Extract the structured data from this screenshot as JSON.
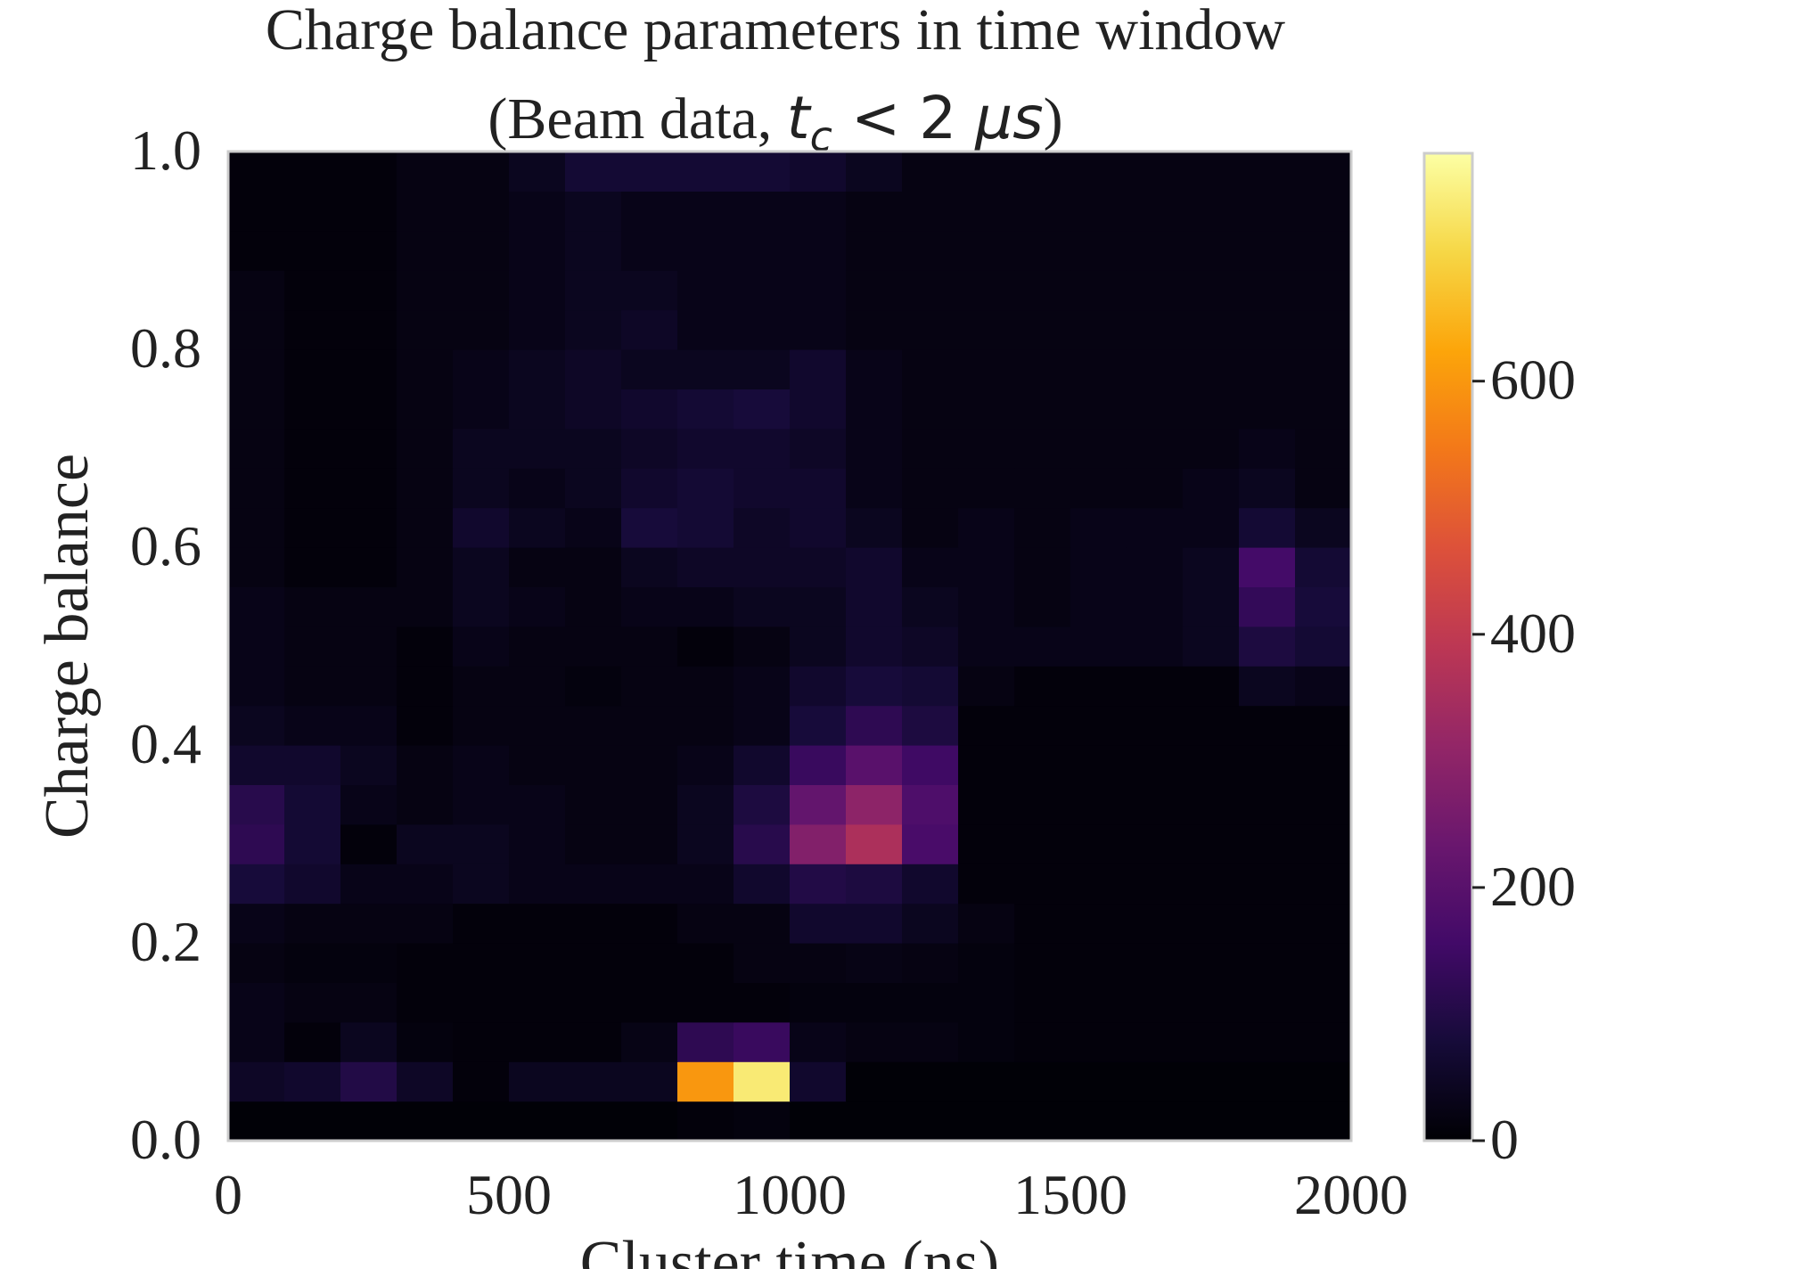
{
  "chart_data": {
    "type": "heatmap",
    "title": "Charge balance parameters in time window",
    "subtitle": {
      "prefix": "(Beam data, ",
      "math_t": "t",
      "math_sub": "c",
      "math_rest": " < 2 ",
      "math_unit": "μs",
      "suffix": ")"
    },
    "xlabel": "Cluster time (ns)",
    "ylabel": "Charge balance",
    "xlim": [
      0,
      2000
    ],
    "ylim": [
      0,
      1
    ],
    "x_ticks": [
      "0",
      "500",
      "1000",
      "1500",
      "2000"
    ],
    "y_ticks": [
      "0.0",
      "0.2",
      "0.4",
      "0.6",
      "0.8",
      "1.0"
    ],
    "colorbar": {
      "range": [
        0,
        780
      ],
      "ticks": [
        "0",
        "200",
        "400",
        "600"
      ],
      "colormap": "inferno"
    },
    "x_bin_edges_ns": [
      0,
      100,
      200,
      300,
      400,
      500,
      600,
      700,
      800,
      900,
      1000,
      1100,
      1200,
      1300,
      1400,
      1500,
      1600,
      1700,
      1800,
      1900,
      2000
    ],
    "y_bin_edges": [
      0.0,
      0.04,
      0.08,
      0.12,
      0.16,
      0.2,
      0.24,
      0.28,
      0.32,
      0.36,
      0.4,
      0.44,
      0.48,
      0.52,
      0.56,
      0.6,
      0.64,
      0.68,
      0.72,
      0.76,
      0.8,
      0.84,
      0.88,
      0.92,
      0.96,
      1.0
    ],
    "counts_rows_bottom_to_top": [
      [
        5,
        5,
        5,
        5,
        5,
        5,
        5,
        5,
        10,
        15,
        5,
        5,
        5,
        5,
        5,
        5,
        5,
        5,
        5,
        5
      ],
      [
        50,
        60,
        100,
        50,
        10,
        40,
        40,
        40,
        600,
        740,
        60,
        5,
        5,
        5,
        5,
        5,
        5,
        5,
        5,
        5
      ],
      [
        30,
        10,
        40,
        15,
        10,
        10,
        10,
        25,
        120,
        140,
        30,
        20,
        20,
        15,
        10,
        10,
        10,
        10,
        10,
        10
      ],
      [
        30,
        20,
        20,
        10,
        10,
        10,
        10,
        10,
        10,
        10,
        15,
        15,
        15,
        15,
        10,
        10,
        10,
        10,
        10,
        10
      ],
      [
        20,
        15,
        15,
        10,
        10,
        10,
        10,
        10,
        10,
        20,
        20,
        25,
        20,
        15,
        10,
        10,
        10,
        10,
        10,
        10
      ],
      [
        30,
        20,
        20,
        20,
        10,
        10,
        10,
        10,
        20,
        20,
        60,
        60,
        40,
        20,
        10,
        10,
        10,
        10,
        10,
        10
      ],
      [
        80,
        60,
        30,
        30,
        40,
        30,
        30,
        30,
        30,
        60,
        100,
        90,
        60,
        10,
        10,
        10,
        10,
        10,
        10,
        10
      ],
      [
        120,
        70,
        10,
        40,
        40,
        30,
        20,
        20,
        40,
        110,
        280,
        360,
        170,
        10,
        10,
        10,
        10,
        10,
        10,
        10
      ],
      [
        110,
        70,
        30,
        20,
        30,
        30,
        20,
        20,
        40,
        90,
        220,
        300,
        180,
        10,
        10,
        10,
        10,
        10,
        10,
        10
      ],
      [
        60,
        60,
        40,
        20,
        30,
        20,
        20,
        20,
        30,
        60,
        140,
        200,
        150,
        10,
        10,
        10,
        10,
        10,
        10,
        10
      ],
      [
        40,
        30,
        30,
        10,
        20,
        20,
        20,
        20,
        20,
        30,
        80,
        120,
        90,
        10,
        10,
        10,
        10,
        10,
        10,
        10
      ],
      [
        30,
        20,
        20,
        10,
        20,
        20,
        15,
        20,
        20,
        30,
        60,
        80,
        70,
        20,
        10,
        10,
        10,
        10,
        40,
        30
      ],
      [
        30,
        20,
        20,
        10,
        30,
        20,
        20,
        20,
        10,
        20,
        40,
        60,
        50,
        30,
        30,
        30,
        30,
        40,
        90,
        70
      ],
      [
        30,
        20,
        20,
        20,
        40,
        30,
        20,
        30,
        30,
        40,
        40,
        60,
        40,
        30,
        20,
        30,
        30,
        40,
        130,
        80
      ],
      [
        20,
        10,
        10,
        20,
        40,
        20,
        20,
        40,
        50,
        50,
        50,
        60,
        30,
        30,
        20,
        30,
        30,
        40,
        160,
        70
      ],
      [
        20,
        10,
        10,
        20,
        60,
        40,
        30,
        80,
        70,
        50,
        60,
        40,
        20,
        30,
        20,
        30,
        30,
        30,
        70,
        40
      ],
      [
        20,
        10,
        10,
        20,
        40,
        30,
        40,
        60,
        70,
        60,
        60,
        30,
        20,
        20,
        20,
        20,
        20,
        30,
        40,
        20
      ],
      [
        20,
        10,
        10,
        20,
        40,
        40,
        40,
        50,
        60,
        60,
        50,
        30,
        20,
        20,
        20,
        20,
        20,
        20,
        30,
        20
      ],
      [
        20,
        10,
        10,
        20,
        30,
        40,
        50,
        60,
        70,
        80,
        60,
        30,
        20,
        20,
        20,
        20,
        20,
        20,
        20,
        20
      ],
      [
        20,
        10,
        10,
        20,
        30,
        40,
        50,
        40,
        40,
        40,
        60,
        30,
        20,
        20,
        20,
        20,
        20,
        20,
        20,
        20
      ],
      [
        20,
        10,
        10,
        20,
        20,
        30,
        40,
        50,
        30,
        30,
        30,
        20,
        20,
        20,
        20,
        20,
        20,
        20,
        20,
        20
      ],
      [
        20,
        10,
        10,
        20,
        20,
        30,
        40,
        40,
        30,
        30,
        30,
        20,
        20,
        20,
        20,
        20,
        20,
        20,
        20,
        20
      ],
      [
        10,
        10,
        10,
        20,
        20,
        30,
        40,
        30,
        30,
        30,
        30,
        20,
        20,
        20,
        20,
        20,
        20,
        20,
        20,
        20
      ],
      [
        10,
        10,
        10,
        20,
        20,
        30,
        40,
        30,
        30,
        30,
        30,
        20,
        20,
        20,
        20,
        20,
        20,
        20,
        20,
        20
      ],
      [
        10,
        10,
        10,
        20,
        20,
        40,
        70,
        70,
        70,
        70,
        60,
        40,
        20,
        20,
        20,
        20,
        20,
        20,
        20,
        20
      ]
    ]
  }
}
